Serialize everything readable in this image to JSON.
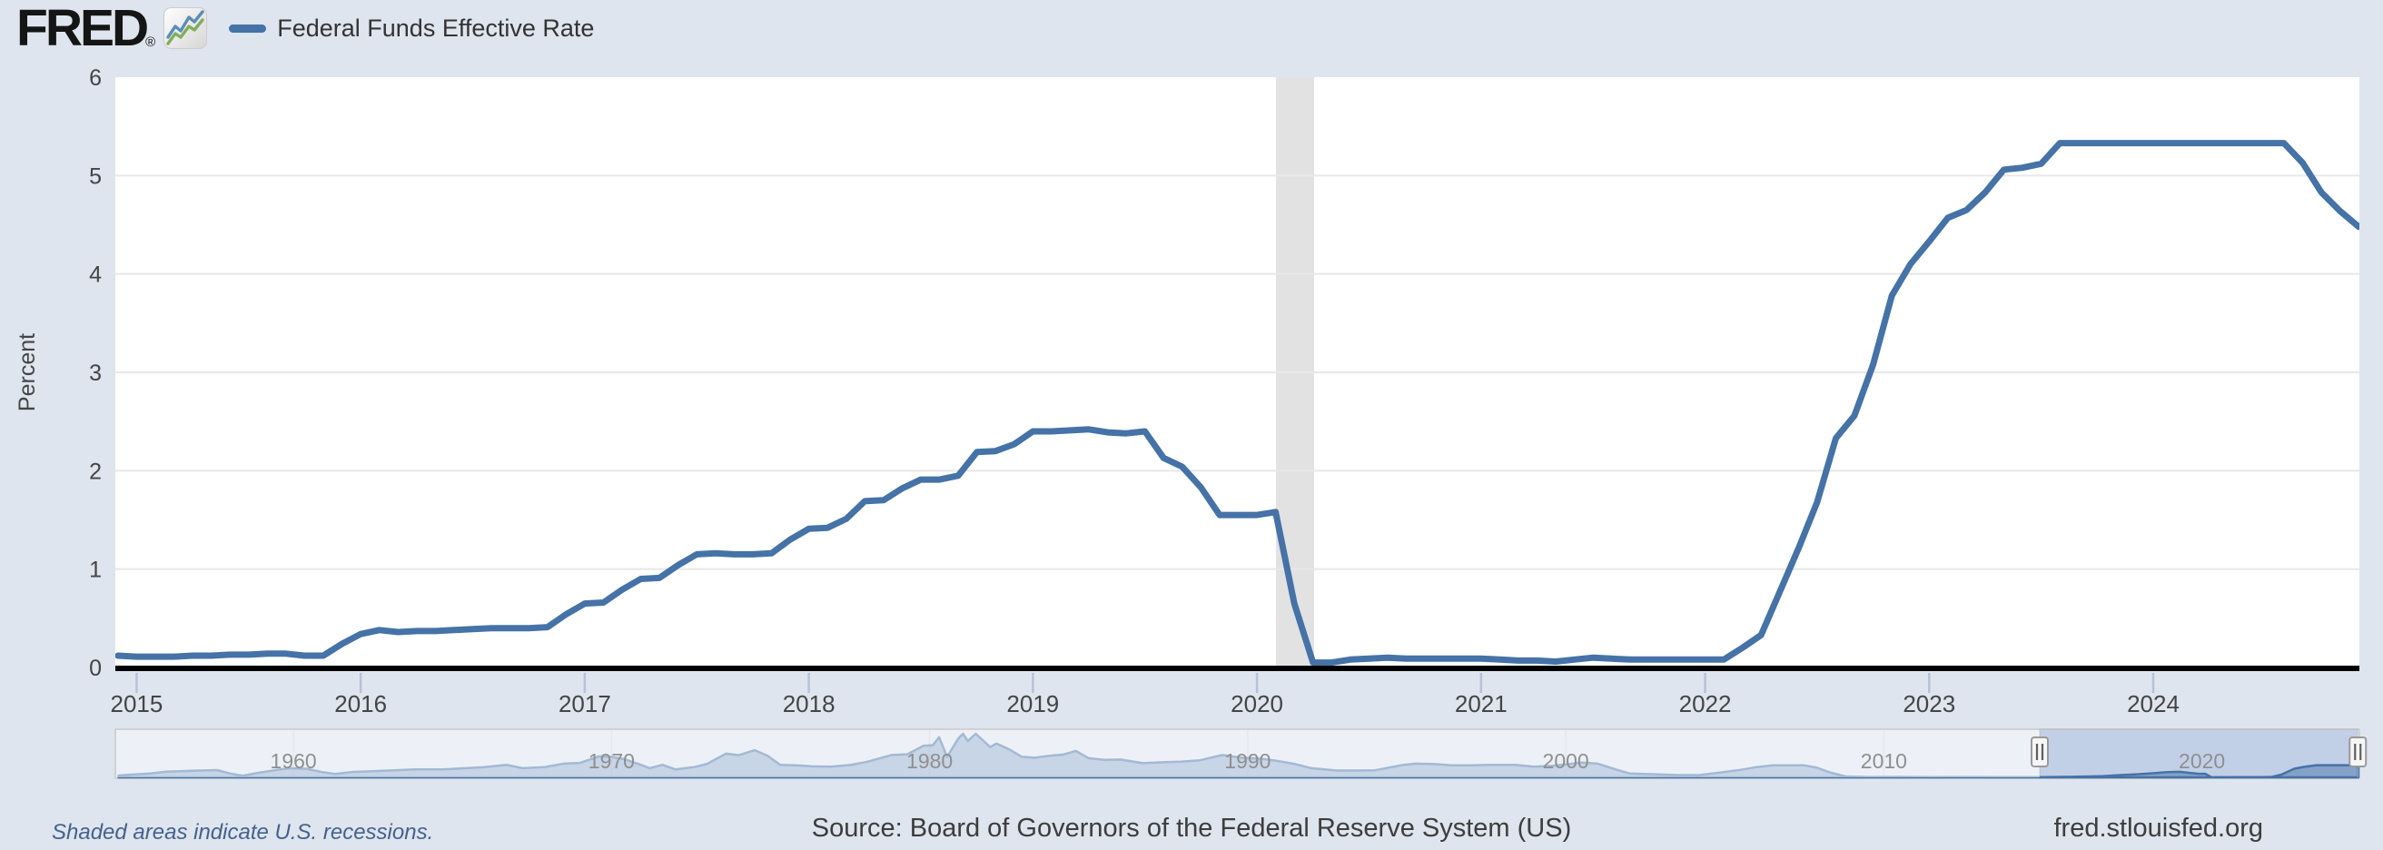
{
  "header": {
    "logo_text": "FRED",
    "registered_mark": "®",
    "legend": {
      "series_label": "Federal Funds Effective Rate",
      "series_color": "#4572a7"
    }
  },
  "footer": {
    "recession_note": "Shaded areas indicate U.S. recessions.",
    "source": "Source: Board of Governors of the Federal Reserve System (US)",
    "site": "fred.stlouisfed.org"
  },
  "chart_data": [
    {
      "type": "line",
      "title": "Federal Funds Effective Rate",
      "ylabel": "Percent",
      "ylim": [
        0,
        6
      ],
      "yticks": [
        0,
        1,
        2,
        3,
        4,
        5,
        6
      ],
      "xticks": [
        2015,
        2016,
        2017,
        2018,
        2019,
        2020,
        2021,
        2022,
        2023,
        2024
      ],
      "x_range_years": [
        2014.905,
        2024.92
      ],
      "grid": "horizontal",
      "line_color": "#4572a7",
      "plot_bg": "#ffffff",
      "recession_bands": [
        {
          "start": 2020.085,
          "end": 2020.255
        }
      ],
      "series": [
        {
          "name": "Federal Funds Effective Rate",
          "frequency": "monthly",
          "x_start": {
            "year": 2014,
            "month": 12
          },
          "values": [
            0.12,
            0.11,
            0.11,
            0.11,
            0.12,
            0.12,
            0.13,
            0.13,
            0.14,
            0.14,
            0.12,
            0.12,
            0.24,
            0.34,
            0.38,
            0.36,
            0.37,
            0.37,
            0.38,
            0.39,
            0.4,
            0.4,
            0.4,
            0.41,
            0.54,
            0.65,
            0.66,
            0.79,
            0.9,
            0.91,
            1.04,
            1.15,
            1.16,
            1.15,
            1.15,
            1.16,
            1.3,
            1.41,
            1.42,
            1.51,
            1.69,
            1.7,
            1.82,
            1.91,
            1.91,
            1.95,
            2.19,
            2.2,
            2.27,
            2.4,
            2.4,
            2.41,
            2.42,
            2.39,
            2.38,
            2.4,
            2.13,
            2.04,
            1.83,
            1.55,
            1.55,
            1.55,
            1.58,
            0.65,
            0.05,
            0.05,
            0.08,
            0.09,
            0.1,
            0.09,
            0.09,
            0.09,
            0.09,
            0.09,
            0.08,
            0.07,
            0.07,
            0.06,
            0.08,
            0.1,
            0.09,
            0.08,
            0.08,
            0.08,
            0.08,
            0.08,
            0.08,
            0.2,
            0.33,
            0.77,
            1.21,
            1.68,
            2.33,
            2.56,
            3.08,
            3.78,
            4.1,
            4.33,
            4.57,
            4.65,
            4.83,
            5.06,
            5.08,
            5.12,
            5.33,
            5.33,
            5.33,
            5.33,
            5.33,
            5.33,
            5.33,
            5.33,
            5.33,
            5.33,
            5.33,
            5.33,
            5.33,
            5.13,
            4.83,
            4.64,
            4.48
          ]
        }
      ]
    },
    {
      "type": "area",
      "role": "range-selector",
      "name": "Federal Funds Effective Rate (full history navigator)",
      "x_range_years": [
        1954.4,
        2024.95
      ],
      "ylim": [
        0,
        19.5
      ],
      "selected_range_years": [
        2014.9,
        2024.9
      ],
      "decade_ticks": [
        1960,
        1970,
        1980,
        1990,
        2000,
        2010,
        2020
      ],
      "decade_labels": [
        "1960",
        "1970",
        "1980",
        "1990",
        "2000",
        "2010",
        "2020"
      ],
      "line_color": "#4572a7",
      "area_fill": "rgba(69,114,167,0.5)",
      "selection_fill": "#c2d0e7",
      "track_fill": "#e9edf4",
      "x": [
        1954.5,
        1954.9,
        1955.5,
        1956,
        1956.8,
        1957.6,
        1958,
        1958.4,
        1958.9,
        1959.5,
        1959.9,
        1960.4,
        1960.9,
        1961.3,
        1961.9,
        1962.5,
        1963,
        1963.8,
        1964.7,
        1965.5,
        1966,
        1966.7,
        1967.2,
        1967.9,
        1968.5,
        1969,
        1969.6,
        1970,
        1970.4,
        1970.9,
        1971.2,
        1971.6,
        1972,
        1972.6,
        1973,
        1973.6,
        1974,
        1974.5,
        1974.9,
        1975.3,
        1975.9,
        1976.3,
        1976.9,
        1977.5,
        1978,
        1978.8,
        1979.3,
        1979.8,
        1980.1,
        1980.3,
        1980.55,
        1980.9,
        1981.05,
        1981.2,
        1981.45,
        1981.7,
        1981.9,
        1982.1,
        1982.5,
        1982.9,
        1983.3,
        1983.8,
        1984.2,
        1984.6,
        1985,
        1985.5,
        1986,
        1986.7,
        1987.3,
        1987.9,
        1988.5,
        1989.2,
        1989.8,
        1990.4,
        1990.9,
        1991.5,
        1992,
        1992.8,
        1993.5,
        1994,
        1994.9,
        1995.3,
        1995.9,
        1996.4,
        1997,
        1997.6,
        1998.4,
        1999,
        1999.6,
        2000.1,
        2000.5,
        2001,
        2001.5,
        2002,
        2002.9,
        2003.5,
        2004.2,
        2004.9,
        2005.5,
        2006,
        2006.5,
        2007.5,
        2007.9,
        2008.3,
        2008.8,
        2009.5,
        2010.5,
        2011.5,
        2012.5,
        2013.5,
        2014.5,
        2015,
        2015.9,
        2016.5,
        2016.9,
        2017.5,
        2017.9,
        2018.5,
        2018.9,
        2019.3,
        2019.9,
        2020.1,
        2020.3,
        2021,
        2021.9,
        2022.2,
        2022.5,
        2022.9,
        2023.2,
        2023.6,
        2024.6,
        2024.75,
        2024.92
      ],
      "values": [
        0.8,
        1.2,
        1.7,
        2.5,
        2.9,
        3.2,
        1.7,
        0.7,
        2,
        3.3,
        4,
        3.8,
        2.3,
        1.5,
        2.4,
        2.7,
        3,
        3.5,
        3.5,
        4.1,
        4.5,
        5.5,
        4,
        4.5,
        6,
        6.3,
        9.2,
        9,
        8,
        5.6,
        4,
        5.5,
        3.5,
        4.5,
        5.9,
        10.4,
        9.7,
        11.9,
        9.5,
        5.5,
        5.2,
        4.8,
        4.7,
        5.4,
        6.7,
        9.8,
        10.1,
        13.8,
        14.1,
        17.6,
        9,
        17,
        19.1,
        15.9,
        19.1,
        15.9,
        13.3,
        14.8,
        12.3,
        9,
        8.6,
        9.5,
        10,
        11.6,
        8.4,
        7.7,
        7.8,
        6.2,
        6.6,
        6.9,
        7.5,
        9.8,
        8.6,
        8.2,
        7.3,
        5.8,
        4,
        3,
        3,
        3.1,
        5.5,
        6,
        5.8,
        5.3,
        5.3,
        5.5,
        5.5,
        4.7,
        5.1,
        5.8,
        6.5,
        6,
        3.8,
        1.7,
        1.3,
        1,
        1,
        2.2,
        3.3,
        4.5,
        5.25,
        5.25,
        4.2,
        2.2,
        0.4,
        0.16,
        0.18,
        0.1,
        0.14,
        0.11,
        0.09,
        0.11,
        0.24,
        0.39,
        0.54,
        1.04,
        1.3,
        1.82,
        2.27,
        2.41,
        1.55,
        1.58,
        0.05,
        0.08,
        0.08,
        0.2,
        1.21,
        3.78,
        4.57,
        5.33,
        5.33,
        5.13,
        4.48
      ]
    }
  ]
}
